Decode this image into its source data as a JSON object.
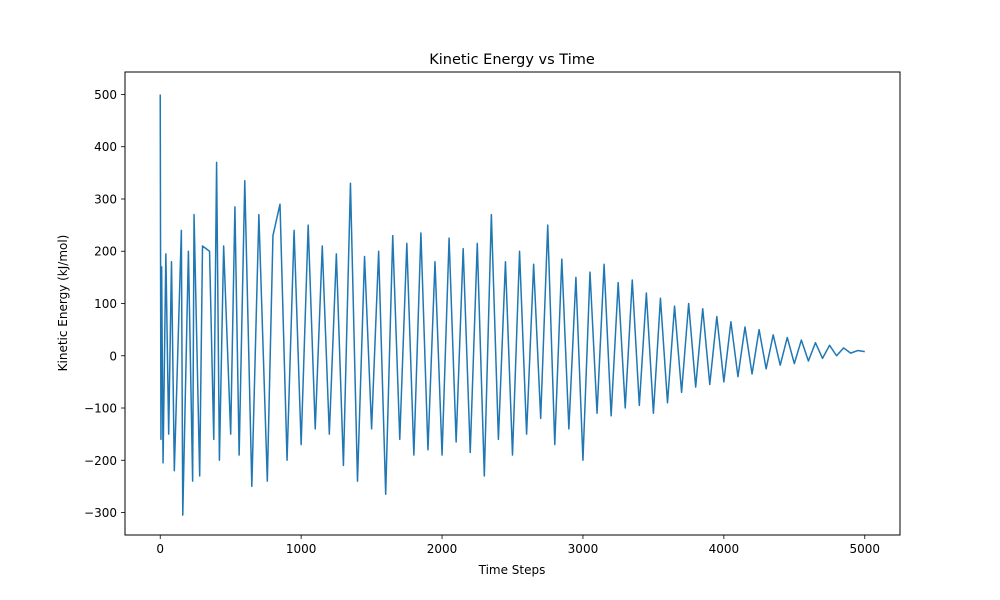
{
  "chart_data": {
    "type": "line",
    "title": "Kinetic Energy vs Time",
    "xlabel": "Time Steps",
    "ylabel": "Kinetic Energy (kJ/mol)",
    "xlim": [
      -250,
      5250
    ],
    "ylim": [
      -343,
      543
    ],
    "xticks": [
      0,
      1000,
      2000,
      3000,
      4000,
      5000
    ],
    "xtick_labels": [
      "0",
      "1000",
      "2000",
      "3000",
      "4000",
      "5000"
    ],
    "yticks": [
      500,
      400,
      300,
      200,
      100,
      0,
      -100,
      -200,
      -300
    ],
    "ytick_labels": [
      "500",
      "400",
      "300",
      "200",
      "100",
      "0",
      "−100",
      "−200",
      "−300"
    ],
    "grid": false,
    "legend": "none",
    "series": [
      {
        "color": "#1f77b4",
        "x": [
          0,
          5,
          10,
          20,
          40,
          60,
          80,
          100,
          150,
          160,
          200,
          230,
          240,
          280,
          300,
          350,
          380,
          400,
          420,
          450,
          500,
          530,
          560,
          600,
          650,
          700,
          760,
          800,
          850,
          900,
          950,
          1000,
          1050,
          1100,
          1150,
          1200,
          1250,
          1300,
          1350,
          1400,
          1450,
          1500,
          1550,
          1600,
          1650,
          1700,
          1750,
          1800,
          1850,
          1900,
          1950,
          2000,
          2050,
          2100,
          2150,
          2200,
          2250,
          2300,
          2350,
          2400,
          2450,
          2500,
          2550,
          2600,
          2650,
          2700,
          2750,
          2800,
          2850,
          2900,
          2950,
          3000,
          3050,
          3100,
          3150,
          3200,
          3250,
          3300,
          3350,
          3400,
          3450,
          3500,
          3550,
          3600,
          3650,
          3700,
          3750,
          3800,
          3850,
          3900,
          3950,
          4000,
          4050,
          4100,
          4150,
          4200,
          4250,
          4300,
          4350,
          4400,
          4450,
          4500,
          4550,
          4600,
          4650,
          4700,
          4750,
          4800,
          4850,
          4900,
          4950,
          5000
        ],
        "y": [
          500,
          -160,
          170,
          -205,
          195,
          -150,
          180,
          -220,
          240,
          -305,
          200,
          -240,
          270,
          -230,
          210,
          200,
          -160,
          370,
          -200,
          210,
          -150,
          285,
          -190,
          335,
          -250,
          270,
          -240,
          230,
          290,
          -200,
          240,
          -170,
          250,
          -140,
          210,
          -150,
          195,
          -210,
          330,
          -240,
          190,
          -140,
          200,
          -265,
          230,
          -160,
          215,
          -190,
          235,
          -180,
          180,
          -190,
          225,
          -165,
          205,
          -185,
          215,
          -230,
          270,
          -160,
          180,
          -190,
          200,
          -150,
          175,
          -120,
          250,
          -170,
          185,
          -140,
          150,
          -200,
          160,
          -110,
          175,
          -115,
          140,
          -100,
          145,
          -95,
          120,
          -110,
          110,
          -90,
          95,
          -70,
          100,
          -60,
          90,
          -55,
          75,
          -50,
          65,
          -40,
          55,
          -35,
          50,
          -25,
          40,
          -18,
          35,
          -15,
          30,
          -10,
          25,
          -5,
          20,
          0,
          15,
          5,
          10,
          8
        ]
      }
    ]
  }
}
